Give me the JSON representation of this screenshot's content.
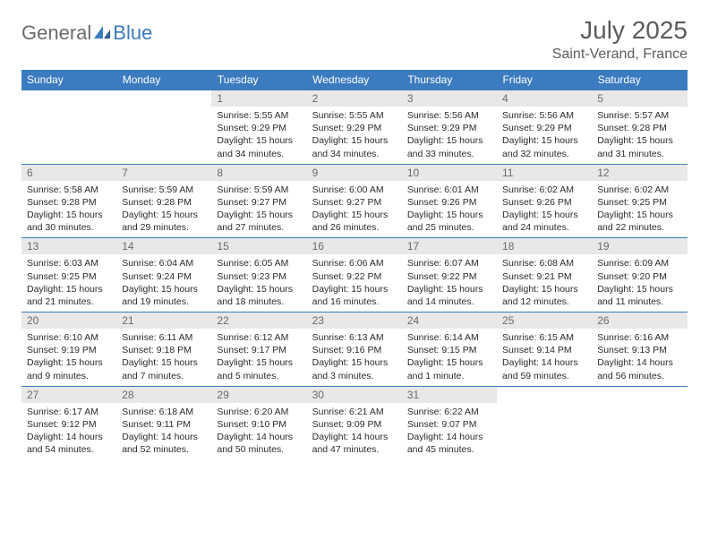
{
  "logo": {
    "text1": "General",
    "text2": "Blue"
  },
  "title": "July 2025",
  "location": "Saint-Verand, France",
  "colors": {
    "header_bg": "#3b7bbf",
    "header_text": "#ffffff",
    "daynum_bg": "#e8e8e8",
    "daynum_text": "#6b6b6b",
    "body_text": "#2b2b2b",
    "title_text": "#5b5b5b",
    "border": "#3b7bbf"
  },
  "weekdays": [
    "Sunday",
    "Monday",
    "Tuesday",
    "Wednesday",
    "Thursday",
    "Friday",
    "Saturday"
  ],
  "weeks": [
    [
      null,
      null,
      {
        "n": "1",
        "sr": "5:55 AM",
        "ss": "9:29 PM",
        "dl": "15 hours and 34 minutes."
      },
      {
        "n": "2",
        "sr": "5:55 AM",
        "ss": "9:29 PM",
        "dl": "15 hours and 34 minutes."
      },
      {
        "n": "3",
        "sr": "5:56 AM",
        "ss": "9:29 PM",
        "dl": "15 hours and 33 minutes."
      },
      {
        "n": "4",
        "sr": "5:56 AM",
        "ss": "9:29 PM",
        "dl": "15 hours and 32 minutes."
      },
      {
        "n": "5",
        "sr": "5:57 AM",
        "ss": "9:28 PM",
        "dl": "15 hours and 31 minutes."
      }
    ],
    [
      {
        "n": "6",
        "sr": "5:58 AM",
        "ss": "9:28 PM",
        "dl": "15 hours and 30 minutes."
      },
      {
        "n": "7",
        "sr": "5:59 AM",
        "ss": "9:28 PM",
        "dl": "15 hours and 29 minutes."
      },
      {
        "n": "8",
        "sr": "5:59 AM",
        "ss": "9:27 PM",
        "dl": "15 hours and 27 minutes."
      },
      {
        "n": "9",
        "sr": "6:00 AM",
        "ss": "9:27 PM",
        "dl": "15 hours and 26 minutes."
      },
      {
        "n": "10",
        "sr": "6:01 AM",
        "ss": "9:26 PM",
        "dl": "15 hours and 25 minutes."
      },
      {
        "n": "11",
        "sr": "6:02 AM",
        "ss": "9:26 PM",
        "dl": "15 hours and 24 minutes."
      },
      {
        "n": "12",
        "sr": "6:02 AM",
        "ss": "9:25 PM",
        "dl": "15 hours and 22 minutes."
      }
    ],
    [
      {
        "n": "13",
        "sr": "6:03 AM",
        "ss": "9:25 PM",
        "dl": "15 hours and 21 minutes."
      },
      {
        "n": "14",
        "sr": "6:04 AM",
        "ss": "9:24 PM",
        "dl": "15 hours and 19 minutes."
      },
      {
        "n": "15",
        "sr": "6:05 AM",
        "ss": "9:23 PM",
        "dl": "15 hours and 18 minutes."
      },
      {
        "n": "16",
        "sr": "6:06 AM",
        "ss": "9:22 PM",
        "dl": "15 hours and 16 minutes."
      },
      {
        "n": "17",
        "sr": "6:07 AM",
        "ss": "9:22 PM",
        "dl": "15 hours and 14 minutes."
      },
      {
        "n": "18",
        "sr": "6:08 AM",
        "ss": "9:21 PM",
        "dl": "15 hours and 12 minutes."
      },
      {
        "n": "19",
        "sr": "6:09 AM",
        "ss": "9:20 PM",
        "dl": "15 hours and 11 minutes."
      }
    ],
    [
      {
        "n": "20",
        "sr": "6:10 AM",
        "ss": "9:19 PM",
        "dl": "15 hours and 9 minutes."
      },
      {
        "n": "21",
        "sr": "6:11 AM",
        "ss": "9:18 PM",
        "dl": "15 hours and 7 minutes."
      },
      {
        "n": "22",
        "sr": "6:12 AM",
        "ss": "9:17 PM",
        "dl": "15 hours and 5 minutes."
      },
      {
        "n": "23",
        "sr": "6:13 AM",
        "ss": "9:16 PM",
        "dl": "15 hours and 3 minutes."
      },
      {
        "n": "24",
        "sr": "6:14 AM",
        "ss": "9:15 PM",
        "dl": "15 hours and 1 minute."
      },
      {
        "n": "25",
        "sr": "6:15 AM",
        "ss": "9:14 PM",
        "dl": "14 hours and 59 minutes."
      },
      {
        "n": "26",
        "sr": "6:16 AM",
        "ss": "9:13 PM",
        "dl": "14 hours and 56 minutes."
      }
    ],
    [
      {
        "n": "27",
        "sr": "6:17 AM",
        "ss": "9:12 PM",
        "dl": "14 hours and 54 minutes."
      },
      {
        "n": "28",
        "sr": "6:18 AM",
        "ss": "9:11 PM",
        "dl": "14 hours and 52 minutes."
      },
      {
        "n": "29",
        "sr": "6:20 AM",
        "ss": "9:10 PM",
        "dl": "14 hours and 50 minutes."
      },
      {
        "n": "30",
        "sr": "6:21 AM",
        "ss": "9:09 PM",
        "dl": "14 hours and 47 minutes."
      },
      {
        "n": "31",
        "sr": "6:22 AM",
        "ss": "9:07 PM",
        "dl": "14 hours and 45 minutes."
      },
      null,
      null
    ]
  ],
  "labels": {
    "sunrise": "Sunrise:",
    "sunset": "Sunset:",
    "daylight": "Daylight:"
  }
}
